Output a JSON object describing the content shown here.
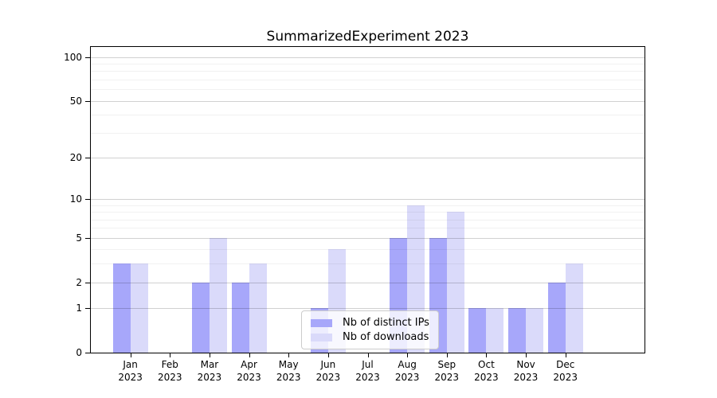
{
  "chart_data": {
    "type": "bar",
    "title": "SummarizedExperiment 2023",
    "categories": [
      "Jan",
      "Feb",
      "Mar",
      "Apr",
      "May",
      "Jun",
      "Jul",
      "Aug",
      "Sep",
      "Oct",
      "Nov",
      "Dec"
    ],
    "category_year": "2023",
    "series": [
      {
        "name": "Nb of distinct IPs",
        "color": "#a7a7fa",
        "values": [
          3,
          0,
          2,
          2,
          0,
          1,
          0,
          5,
          5,
          1,
          1,
          2
        ]
      },
      {
        "name": "Nb of downloads",
        "color": "#dadafa",
        "values": [
          3,
          0,
          5,
          3,
          0,
          4,
          0,
          9,
          8,
          1,
          1,
          3
        ]
      }
    ],
    "xlabel": "",
    "ylabel": "",
    "yscale": "log1p",
    "ytick_labels": [
      0,
      1,
      2,
      5,
      10,
      20,
      50,
      100
    ],
    "yticks_minor": [
      3,
      4,
      6,
      7,
      8,
      9,
      30,
      40,
      60,
      70,
      80,
      90
    ],
    "ylim": [
      0,
      117
    ],
    "grid": "horizontal",
    "legend_position": "lower-center-inside"
  }
}
